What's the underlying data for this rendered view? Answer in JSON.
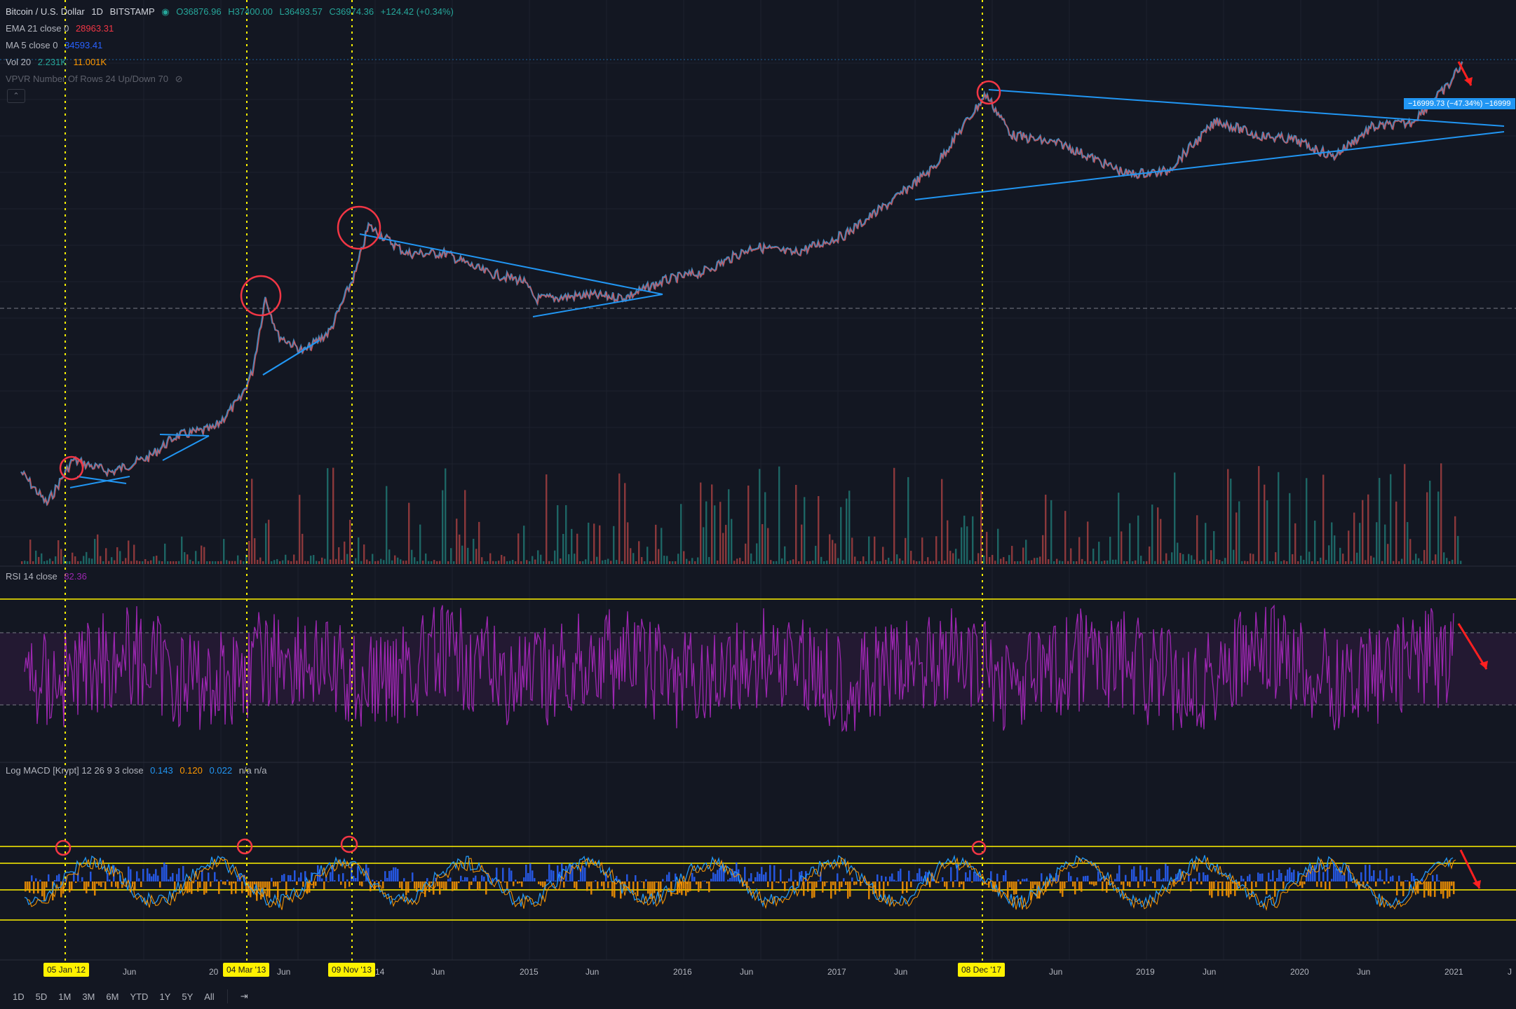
{
  "header": {
    "symbol": "Bitcoin / U.S. Dollar",
    "interval": "1D",
    "exchange": "BITSTAMP",
    "open": "O36876.96",
    "high": "H37400.00",
    "low": "L36493.57",
    "close": "C36974.36",
    "change": "+124.42 (+0.34%)"
  },
  "indicators": {
    "ema": {
      "label": "EMA 21 close 0",
      "value": "28963.31",
      "color": "#f23645"
    },
    "ma": {
      "label": "MA 5 close 0",
      "value": "34593.41",
      "color": "#2962ff"
    },
    "vol": {
      "label": "Vol 20",
      "value1": "2.231K",
      "value2": "11.001K"
    },
    "vpvr": {
      "label": "VPVR Number Of Rows 24 Up/Down 70"
    }
  },
  "rsi": {
    "label": "RSI 14 close",
    "value": "82.36",
    "color": "#9c27b0"
  },
  "macd": {
    "label": "Log MACD [Krypt] 12 26 9 3 close",
    "v1": "0.143",
    "v2": "0.120",
    "v3": "0.022",
    "v4": "n/a n/a"
  },
  "measure_label": "−16999.73 (−47.34%) −16999",
  "x_axis": {
    "labels": [
      "Jun",
      "20",
      "Jun",
      "14",
      "Jun",
      "2015",
      "Jun",
      "2016",
      "Jun",
      "2017",
      "Jun",
      "Jun",
      "2019",
      "Jun",
      "2020",
      "Jun",
      "2021",
      "J"
    ],
    "highlight_dates": [
      "05 Jan '12",
      "04 Mar '13",
      "09 Nov '13",
      "08 Dec '17"
    ]
  },
  "timeframes": [
    "1D",
    "5D",
    "1M",
    "3M",
    "6M",
    "YTD",
    "1Y",
    "5Y",
    "All"
  ],
  "colors": {
    "background": "#131722",
    "up": "#26a69a",
    "down": "#ef5350",
    "trendline": "#2196f3",
    "highlight": "#fff200",
    "circle": "#f23645",
    "rsi": "#9c27b0",
    "macd_up": "#2962ff",
    "macd_down": "#ff9800"
  },
  "chart_data": {
    "type": "line",
    "title": "Bitcoin / U.S. Dollar 1D BITSTAMP",
    "yscale": "log",
    "x_range": [
      "2011-09",
      "2021-01"
    ],
    "series": [
      {
        "name": "Bitcoin / U.S. Dollar",
        "x": [
          "2011-09",
          "2011-11",
          "2012-01",
          "2012-04",
          "2012-07",
          "2012-09",
          "2012-12",
          "2013-02",
          "2013-03",
          "2013-04",
          "2013-05",
          "2013-07",
          "2013-09",
          "2013-11",
          "2013-12",
          "2014-03",
          "2014-06",
          "2014-09",
          "2014-12",
          "2015-01",
          "2015-05",
          "2015-08",
          "2015-11",
          "2016-02",
          "2016-06",
          "2016-09",
          "2017-01",
          "2017-05",
          "2017-08",
          "2017-12",
          "2018-02",
          "2018-06",
          "2018-11",
          "2019-02",
          "2019-06",
          "2019-09",
          "2019-12",
          "2020-03",
          "2020-06",
          "2020-09",
          "2020-12",
          "2021-01"
        ],
        "values": [
          5,
          2.5,
          6.5,
          5,
          7,
          11,
          13,
          25,
          45,
          230,
          100,
          70,
          110,
          400,
          1100,
          600,
          600,
          400,
          330,
          220,
          240,
          230,
          330,
          400,
          700,
          600,
          900,
          2000,
          4000,
          19500,
          8000,
          6500,
          3400,
          3600,
          11000,
          8000,
          7200,
          5000,
          9500,
          10500,
          24000,
          40000
        ]
      }
    ],
    "volume_note": "Vol 20",
    "rsi_levels": [
      70,
      50,
      30
    ],
    "rsi_last": 82.36,
    "macd_last": [
      0.143,
      0.12,
      0.022
    ]
  }
}
